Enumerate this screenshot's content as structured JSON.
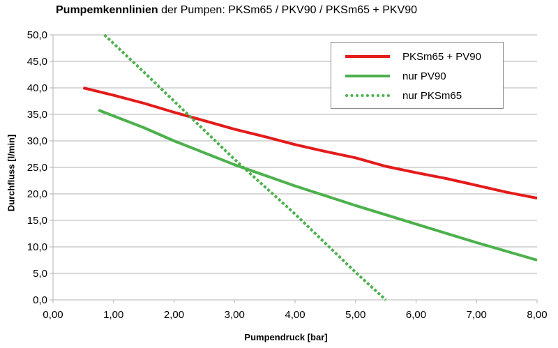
{
  "title": {
    "bold": "Pumpemkennlinien",
    "rest": " der Pumpen: PKSm65 / PKV90 / PKSm65 + PKV90"
  },
  "chart_data": {
    "type": "line",
    "xlabel": "Pumpendruck [bar]",
    "ylabel": "Durchfluss [l/min]",
    "xlim": [
      0,
      8
    ],
    "ylim": [
      0,
      50
    ],
    "x_ticks": [
      "0,00",
      "1,00",
      "2,00",
      "3,00",
      "4,00",
      "5,00",
      "6,00",
      "7,00",
      "8,00"
    ],
    "y_ticks": [
      "0,0",
      "5,0",
      "10,0",
      "15,0",
      "20,0",
      "25,0",
      "30,0",
      "35,0",
      "40,0",
      "45,0",
      "50,0"
    ],
    "grid": "horizontal",
    "legend_position": "top-right",
    "series": [
      {
        "name": "PKSm65 + PV90",
        "color": "#e31b1b",
        "style": "solid",
        "points": [
          [
            0.5,
            40.0
          ],
          [
            1.0,
            38.6
          ],
          [
            1.5,
            37.1
          ],
          [
            2.0,
            35.4
          ],
          [
            2.5,
            33.8
          ],
          [
            3.0,
            32.2
          ],
          [
            3.5,
            30.8
          ],
          [
            4.0,
            29.3
          ],
          [
            4.5,
            28.0
          ],
          [
            5.0,
            26.8
          ],
          [
            5.5,
            25.2
          ],
          [
            6.0,
            24.0
          ],
          [
            6.5,
            22.9
          ],
          [
            7.0,
            21.6
          ],
          [
            7.5,
            20.3
          ],
          [
            8.0,
            19.2
          ]
        ]
      },
      {
        "name": "nur PV90",
        "color": "#4cb14c",
        "style": "solid",
        "points": [
          [
            0.75,
            35.8
          ],
          [
            1.5,
            32.5
          ],
          [
            2.0,
            30.0
          ],
          [
            3.0,
            25.5
          ],
          [
            4.0,
            21.5
          ],
          [
            5.0,
            17.8
          ],
          [
            6.0,
            14.3
          ],
          [
            7.0,
            10.8
          ],
          [
            8.0,
            7.5
          ]
        ]
      },
      {
        "name": "nur PKSm65",
        "color": "#4cb14c",
        "style": "dotted",
        "points": [
          [
            0.85,
            50.0
          ],
          [
            1.5,
            43.0
          ],
          [
            2.0,
            37.5
          ],
          [
            3.0,
            26.5
          ],
          [
            4.0,
            16.2
          ],
          [
            5.0,
            5.2
          ],
          [
            5.5,
            0.0
          ]
        ]
      }
    ]
  }
}
